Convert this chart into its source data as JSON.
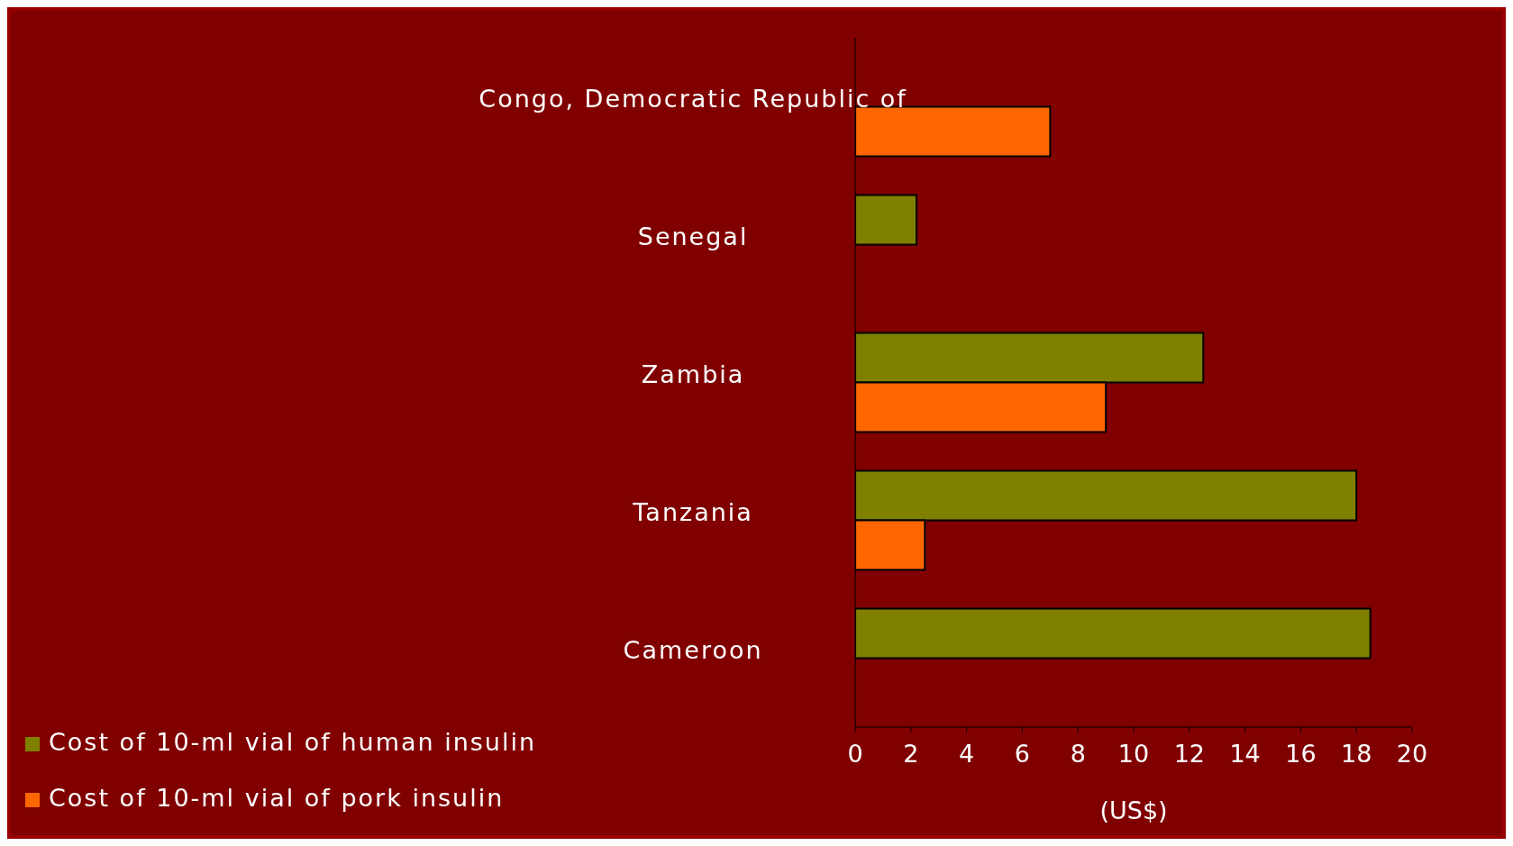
{
  "chart_data": {
    "type": "bar",
    "orientation": "horizontal",
    "xlabel": "(US$)",
    "categories": [
      "Congo, Democratic Republic of",
      "Senegal",
      "Zambia",
      "Tanzania",
      "Cameroon"
    ],
    "series": [
      {
        "name": "Cost of 10-ml vial of human insulin",
        "color": "#808000",
        "values": [
          null,
          2.2,
          12.5,
          18,
          18.5
        ]
      },
      {
        "name": "Cost of 10-ml vial of pork insulin",
        "color": "#ff6600",
        "values": [
          7,
          null,
          9,
          2.5,
          null
        ]
      }
    ],
    "xlim": [
      0,
      20
    ],
    "xticks": [
      0,
      2,
      4,
      6,
      8,
      10,
      12,
      14,
      16,
      18,
      20
    ],
    "grid": false,
    "legend": "bottom left"
  }
}
